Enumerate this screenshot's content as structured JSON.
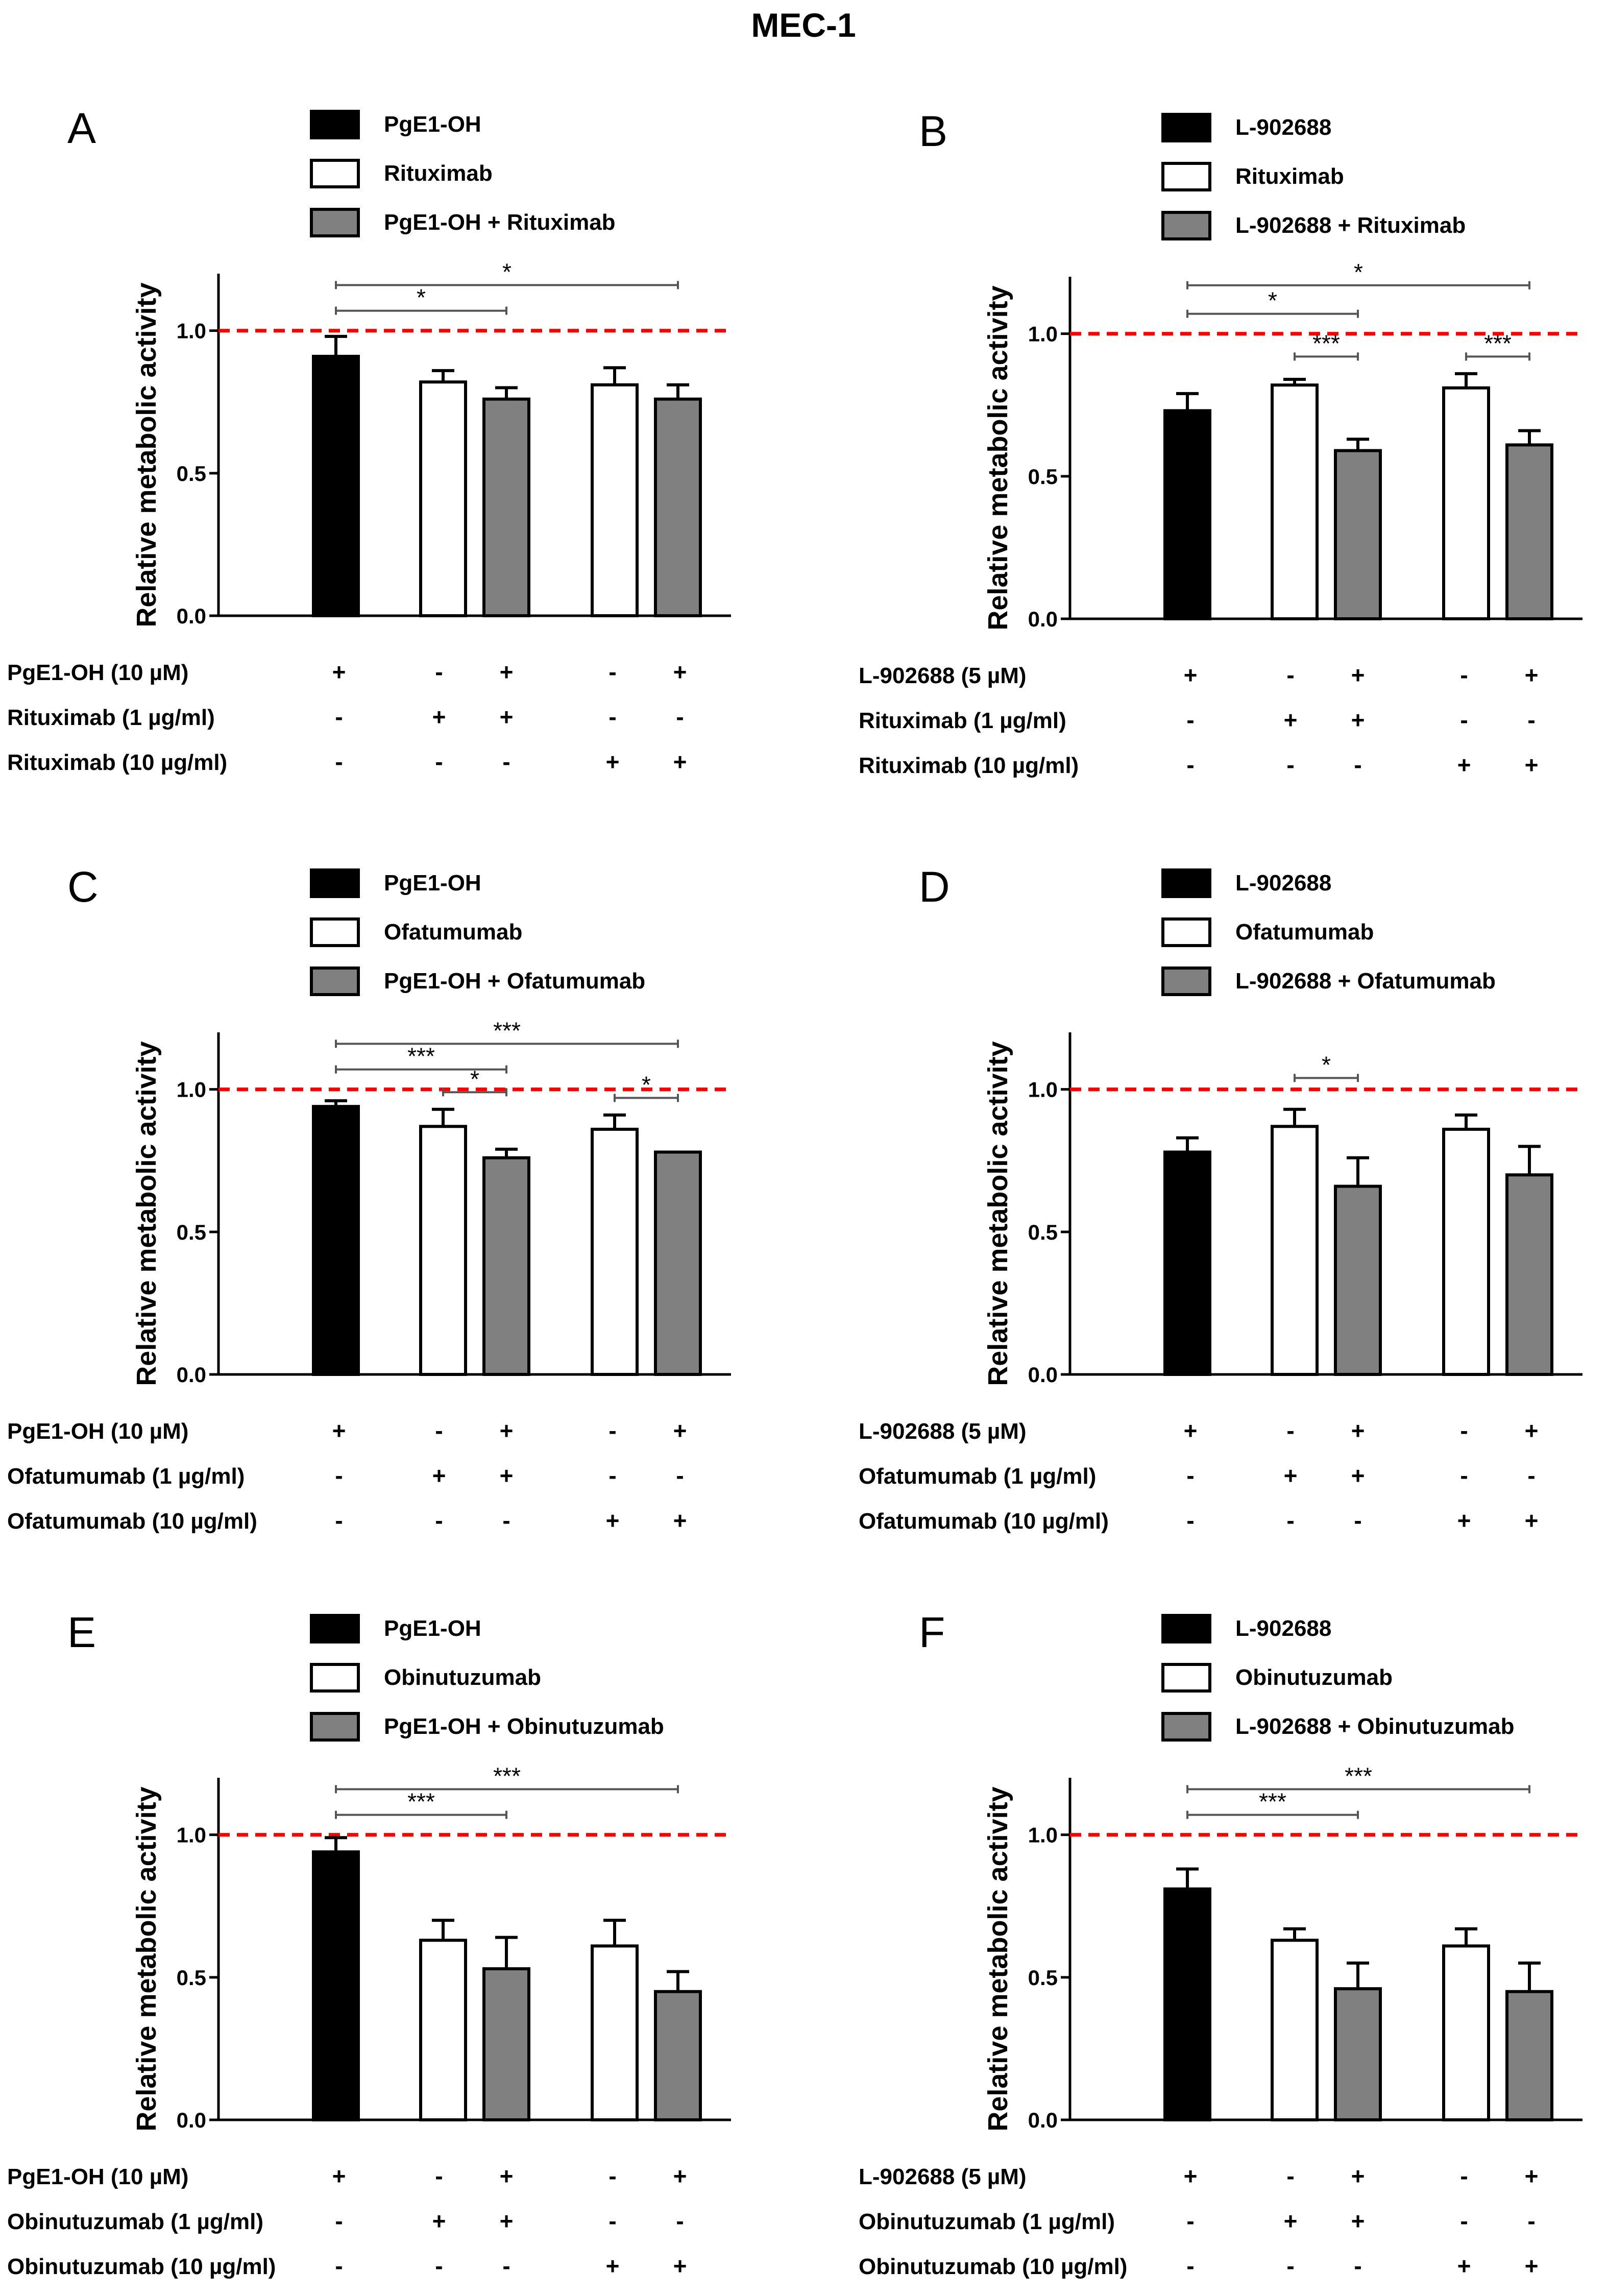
{
  "figure_title": "MEC-1",
  "colors": {
    "black": "#000000",
    "white": "#ffffff",
    "gray": "#808080",
    "reference": "#ff0000",
    "bracket": "#555555"
  },
  "chart_data": [
    {
      "panel": "A",
      "type": "bar",
      "ylabel": "Relative metabolic activity",
      "ylim": [
        0,
        1.2
      ],
      "yticks": [
        "0.0",
        "0.5",
        "1.0"
      ],
      "reference_line": 1.0,
      "legend": [
        {
          "label": "PgE1-OH",
          "fill": "black"
        },
        {
          "label": "Rituximab",
          "fill": "white"
        },
        {
          "label": "PgE1-OH + Rituximab",
          "fill": "gray"
        }
      ],
      "bars": [
        {
          "value": 0.91,
          "error": 0.07,
          "fill": "black"
        },
        {
          "value": 0.82,
          "error": 0.04,
          "fill": "white"
        },
        {
          "value": 0.76,
          "error": 0.04,
          "fill": "gray"
        },
        {
          "value": 0.81,
          "error": 0.06,
          "fill": "white"
        },
        {
          "value": 0.76,
          "error": 0.05,
          "fill": "gray"
        }
      ],
      "significance": [
        {
          "from": 0,
          "to": 2,
          "label": "*",
          "y": 1.07
        },
        {
          "from": 0,
          "to": 4,
          "label": "*",
          "y": 1.16
        }
      ],
      "treatment_rows": [
        {
          "label": "PgE1-OH (10 µM)",
          "signs": [
            "+",
            "-",
            "+",
            "-",
            "+"
          ]
        },
        {
          "label": "Rituximab (1 µg/ml)",
          "signs": [
            "-",
            "+",
            "+",
            "-",
            "-"
          ]
        },
        {
          "label": "Rituximab (10 µg/ml)",
          "signs": [
            "-",
            "-",
            "-",
            "+",
            "+"
          ]
        }
      ]
    },
    {
      "panel": "B",
      "type": "bar",
      "ylabel": "Relative metabolic activity",
      "ylim": [
        0,
        1.2
      ],
      "yticks": [
        "0.0",
        "0.5",
        "1.0"
      ],
      "reference_line": 1.0,
      "legend": [
        {
          "label": "L-902688",
          "fill": "black"
        },
        {
          "label": "Rituximab",
          "fill": "white"
        },
        {
          "label": "L-902688 + Rituximab",
          "fill": "gray"
        }
      ],
      "bars": [
        {
          "value": 0.73,
          "error": 0.06,
          "fill": "black"
        },
        {
          "value": 0.82,
          "error": 0.02,
          "fill": "white"
        },
        {
          "value": 0.59,
          "error": 0.04,
          "fill": "gray"
        },
        {
          "value": 0.81,
          "error": 0.05,
          "fill": "white"
        },
        {
          "value": 0.61,
          "error": 0.05,
          "fill": "gray"
        }
      ],
      "significance": [
        {
          "from": 0,
          "to": 2,
          "label": "*",
          "y": 1.07
        },
        {
          "from": 0,
          "to": 4,
          "label": "*",
          "y": 1.17
        },
        {
          "from": 1,
          "to": 2,
          "label": "***",
          "y": 0.92
        },
        {
          "from": 3,
          "to": 4,
          "label": "***",
          "y": 0.92
        }
      ],
      "treatment_rows": [
        {
          "label": "L-902688 (5 µM)",
          "signs": [
            "+",
            "-",
            "+",
            "-",
            "+"
          ]
        },
        {
          "label": "Rituximab (1 µg/ml)",
          "signs": [
            "-",
            "+",
            "+",
            "-",
            "-"
          ]
        },
        {
          "label": "Rituximab (10 µg/ml)",
          "signs": [
            "-",
            "-",
            "-",
            "+",
            "+"
          ]
        }
      ]
    },
    {
      "panel": "C",
      "type": "bar",
      "ylabel": "Relative metabolic activity",
      "ylim": [
        0,
        1.2
      ],
      "yticks": [
        "0.0",
        "0.5",
        "1.0"
      ],
      "reference_line": 1.0,
      "legend": [
        {
          "label": "PgE1-OH",
          "fill": "black"
        },
        {
          "label": "Ofatumumab",
          "fill": "white"
        },
        {
          "label": "PgE1-OH + Ofatumumab",
          "fill": "gray"
        }
      ],
      "bars": [
        {
          "value": 0.94,
          "error": 0.02,
          "fill": "black"
        },
        {
          "value": 0.87,
          "error": 0.06,
          "fill": "white"
        },
        {
          "value": 0.76,
          "error": 0.03,
          "fill": "gray"
        },
        {
          "value": 0.86,
          "error": 0.05,
          "fill": "white"
        },
        {
          "value": 0.78,
          "error": 0.0,
          "fill": "gray"
        }
      ],
      "significance": [
        {
          "from": 0,
          "to": 2,
          "label": "***",
          "y": 1.07
        },
        {
          "from": 0,
          "to": 4,
          "label": "***",
          "y": 1.16
        },
        {
          "from": 1,
          "to": 2,
          "label": "*",
          "y": 0.99
        },
        {
          "from": 3,
          "to": 4,
          "label": "*",
          "y": 0.97
        }
      ],
      "treatment_rows": [
        {
          "label": "PgE1-OH (10 µM)",
          "signs": [
            "+",
            "-",
            "+",
            "-",
            "+"
          ]
        },
        {
          "label": "Ofatumumab (1 µg/ml)",
          "signs": [
            "-",
            "+",
            "+",
            "-",
            "-"
          ]
        },
        {
          "label": "Ofatumumab (10 µg/ml)",
          "signs": [
            "-",
            "-",
            "-",
            "+",
            "+"
          ]
        }
      ]
    },
    {
      "panel": "D",
      "type": "bar",
      "ylabel": "Relative metabolic activity",
      "ylim": [
        0,
        1.2
      ],
      "yticks": [
        "0.0",
        "0.5",
        "1.0"
      ],
      "reference_line": 1.0,
      "legend": [
        {
          "label": "L-902688",
          "fill": "black"
        },
        {
          "label": "Ofatumumab",
          "fill": "white"
        },
        {
          "label": "L-902688 + Ofatumumab",
          "fill": "gray"
        }
      ],
      "bars": [
        {
          "value": 0.78,
          "error": 0.05,
          "fill": "black"
        },
        {
          "value": 0.87,
          "error": 0.06,
          "fill": "white"
        },
        {
          "value": 0.66,
          "error": 0.1,
          "fill": "gray"
        },
        {
          "value": 0.86,
          "error": 0.05,
          "fill": "white"
        },
        {
          "value": 0.7,
          "error": 0.1,
          "fill": "gray"
        }
      ],
      "significance": [
        {
          "from": 1,
          "to": 2,
          "label": "*",
          "y": 1.04
        }
      ],
      "treatment_rows": [
        {
          "label": "L-902688 (5 µM)",
          "signs": [
            "+",
            "-",
            "+",
            "-",
            "+"
          ]
        },
        {
          "label": "Ofatumumab (1 µg/ml)",
          "signs": [
            "-",
            "+",
            "+",
            "-",
            "-"
          ]
        },
        {
          "label": "Ofatumumab (10 µg/ml)",
          "signs": [
            "-",
            "-",
            "-",
            "+",
            "+"
          ]
        }
      ]
    },
    {
      "panel": "E",
      "type": "bar",
      "ylabel": "Relative metabolic activity",
      "ylim": [
        0,
        1.2
      ],
      "yticks": [
        "0.0",
        "0.5",
        "1.0"
      ],
      "reference_line": 1.0,
      "legend": [
        {
          "label": "PgE1-OH",
          "fill": "black"
        },
        {
          "label": "Obinutuzumab",
          "fill": "white"
        },
        {
          "label": "PgE1-OH + Obinutuzumab",
          "fill": "gray"
        }
      ],
      "bars": [
        {
          "value": 0.94,
          "error": 0.05,
          "fill": "black"
        },
        {
          "value": 0.63,
          "error": 0.07,
          "fill": "white"
        },
        {
          "value": 0.53,
          "error": 0.11,
          "fill": "gray"
        },
        {
          "value": 0.61,
          "error": 0.09,
          "fill": "white"
        },
        {
          "value": 0.45,
          "error": 0.07,
          "fill": "gray"
        }
      ],
      "significance": [
        {
          "from": 0,
          "to": 2,
          "label": "***",
          "y": 1.07
        },
        {
          "from": 0,
          "to": 4,
          "label": "***",
          "y": 1.16
        }
      ],
      "treatment_rows": [
        {
          "label": "PgE1-OH (10 µM)",
          "signs": [
            "+",
            "-",
            "+",
            "-",
            "+"
          ]
        },
        {
          "label": "Obinutuzumab (1 µg/ml)",
          "signs": [
            "-",
            "+",
            "+",
            "-",
            "-"
          ]
        },
        {
          "label": "Obinutuzumab (10 µg/ml)",
          "signs": [
            "-",
            "-",
            "-",
            "+",
            "+"
          ]
        }
      ]
    },
    {
      "panel": "F",
      "type": "bar",
      "ylabel": "Relative metabolic activity",
      "ylim": [
        0,
        1.2
      ],
      "yticks": [
        "0.0",
        "0.5",
        "1.0"
      ],
      "reference_line": 1.0,
      "legend": [
        {
          "label": "L-902688",
          "fill": "black"
        },
        {
          "label": "Obinutuzumab",
          "fill": "white"
        },
        {
          "label": "L-902688 + Obinutuzumab",
          "fill": "gray"
        }
      ],
      "bars": [
        {
          "value": 0.81,
          "error": 0.07,
          "fill": "black"
        },
        {
          "value": 0.63,
          "error": 0.04,
          "fill": "white"
        },
        {
          "value": 0.46,
          "error": 0.09,
          "fill": "gray"
        },
        {
          "value": 0.61,
          "error": 0.06,
          "fill": "white"
        },
        {
          "value": 0.45,
          "error": 0.1,
          "fill": "gray"
        }
      ],
      "significance": [
        {
          "from": 0,
          "to": 2,
          "label": "***",
          "y": 1.07
        },
        {
          "from": 0,
          "to": 4,
          "label": "***",
          "y": 1.16
        }
      ],
      "treatment_rows": [
        {
          "label": "L-902688 (5 µM)",
          "signs": [
            "+",
            "-",
            "+",
            "-",
            "+"
          ]
        },
        {
          "label": "Obinutuzumab (1 µg/ml)",
          "signs": [
            "-",
            "+",
            "+",
            "-",
            "-"
          ]
        },
        {
          "label": "Obinutuzumab (10 µg/ml)",
          "signs": [
            "-",
            "-",
            "-",
            "+",
            "+"
          ]
        }
      ]
    }
  ]
}
